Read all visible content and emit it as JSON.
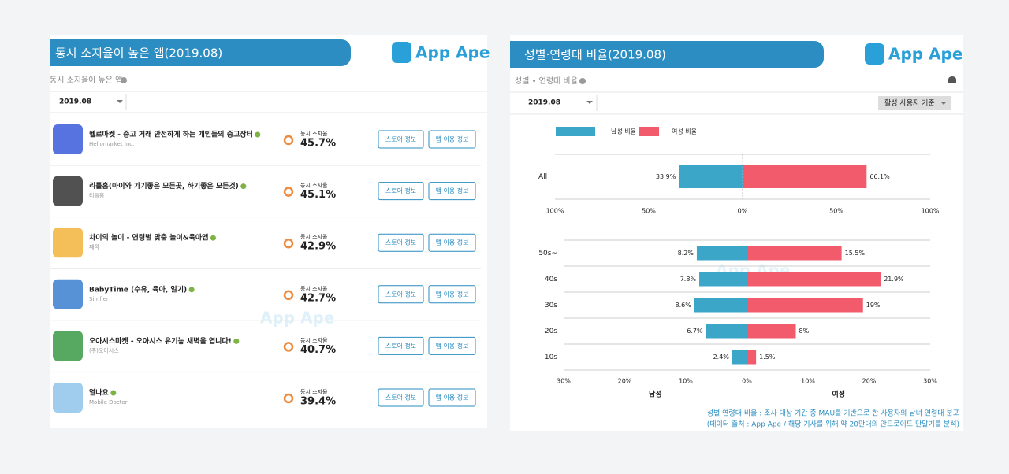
{
  "left_panel": {
    "header": {
      "title": "동시 소지율이 높은 앱(2019.08)",
      "logo": "App Ape"
    },
    "subtitle": "동시 소지율이 높은 앱",
    "date_select": "2019.08",
    "watermark": "App Ape",
    "rows": [
      {
        "name": "헬로마켓 - 중고 거래 안전하게 하는 개인들의 중고장터",
        "developer": "Hellomarket Inc.",
        "metric_label": "동시 소지율",
        "value": "45.7%",
        "buttons": [
          "스토어 정보",
          "앱 이용 정보"
        ]
      },
      {
        "name": "리틀홈(아이와 가기좋은 모든곳, 하기좋은 모든것)",
        "developer": "리틀홈",
        "metric_label": "동시 소지율",
        "value": "45.1%",
        "buttons": [
          "스토어 정보",
          "앱 이용 정보"
        ]
      },
      {
        "name": "차이의 놀이 - 연령별 맞춤 놀이&육아앱",
        "developer": "째깍",
        "metric_label": "동시 소지율",
        "value": "42.9%",
        "buttons": [
          "스토어 정보",
          "앱 이용 정보"
        ]
      },
      {
        "name": "BabyTime (수유, 육아, 일기)",
        "developer": "Simfler",
        "metric_label": "동시 소지율",
        "value": "42.7%",
        "buttons": [
          "스토어 정보",
          "앱 이용 정보"
        ]
      },
      {
        "name": "오아시스마켓 - 오아시스 유기농 새벽을 엽니다!",
        "developer": "(주)오아시스",
        "metric_label": "동시 소지율",
        "value": "40.7%",
        "buttons": [
          "스토어 정보",
          "앱 이용 정보"
        ]
      },
      {
        "name": "열나요",
        "developer": "Mobile Doctor",
        "metric_label": "동시 소지율",
        "value": "39.4%",
        "buttons": [
          "스토어 정보",
          "앱 이용 정보"
        ]
      }
    ]
  },
  "right_panel": {
    "header": {
      "title": "성별·연령대 비율(2019.08)",
      "logo": "App Ape"
    },
    "subtitle": "성별 • 연령대 비율",
    "date_select": "2019.08",
    "basis_select": "활성 사용자 기준",
    "watermark": "App Ape",
    "footnotes": [
      "성별 연령대 비율 : 조사 대상 기간 중 MAU를 기반으로 한 사용자의 남녀 연령대 분포",
      "(데이터 출처 : App Ape / 해당 기사를 위해 약 20만대의 안드로이드 단말기를 분석)"
    ]
  },
  "chart_data": [
    {
      "type": "bar",
      "categories": [
        "All"
      ],
      "series": [
        {
          "name": "남성 비율",
          "color": "#3ba6c8",
          "direction": "left",
          "values": [
            33.9
          ],
          "value_labels": [
            "33.9%"
          ]
        },
        {
          "name": "여성 비율",
          "color": "#f25b6b",
          "direction": "right",
          "values": [
            66.1
          ],
          "value_labels": [
            "66.1%"
          ]
        }
      ],
      "xlim": [
        -100,
        100
      ],
      "xticks": [
        {
          "value": -100,
          "label": "100%"
        },
        {
          "value": -50,
          "label": "50%"
        },
        {
          "value": 0,
          "label": "0%"
        },
        {
          "value": 50,
          "label": "50%"
        },
        {
          "value": 100,
          "label": "100%"
        }
      ]
    },
    {
      "type": "bar",
      "categories": [
        "50s~",
        "40s",
        "30s",
        "20s",
        "10s"
      ],
      "series": [
        {
          "color": "#3ba6c8",
          "direction": "left",
          "values": [
            8.2,
            7.8,
            8.6,
            6.7,
            2.4
          ],
          "value_labels": [
            "8.2%",
            "7.8%",
            "8.6%",
            "6.7%",
            "2.4%"
          ]
        },
        {
          "color": "#f25b6b",
          "direction": "right",
          "values": [
            15.5,
            21.9,
            19,
            8,
            1.5
          ],
          "value_labels": [
            "15.5%",
            "21.9%",
            "19%",
            "8%",
            "1.5%"
          ]
        }
      ],
      "xlim": [
        -30,
        30
      ],
      "xticks": [
        {
          "value": -30,
          "label": "30%"
        },
        {
          "value": -20,
          "label": "20%"
        },
        {
          "value": -10,
          "label": "10%"
        },
        {
          "value": 0,
          "label": "0%"
        },
        {
          "value": 10,
          "label": "10%"
        },
        {
          "value": 20,
          "label": "20%"
        },
        {
          "value": 30,
          "label": "30%"
        }
      ],
      "axis_labels": {
        "left": "남성",
        "right": "여성"
      }
    }
  ]
}
